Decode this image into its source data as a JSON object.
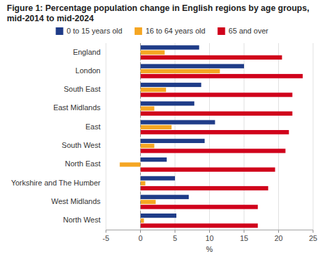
{
  "chart_data": {
    "type": "bar",
    "orientation": "horizontal",
    "title": "Figure 1: Percentage population change in English regions by age groups, mid-2014 to mid-2024",
    "categories": [
      "England",
      "London",
      "South East",
      "East Midlands",
      "East",
      "South West",
      "North East",
      "Yorkshire and The Humber",
      "West Midlands",
      "North West"
    ],
    "series": [
      {
        "name": "0 to 15 years old",
        "color": "#1f3c88",
        "values": [
          8.5,
          15.0,
          8.8,
          7.8,
          10.8,
          9.3,
          3.8,
          5.0,
          7.0,
          5.2
        ]
      },
      {
        "name": "16 to 64 years old",
        "color": "#f5a623",
        "values": [
          3.5,
          11.5,
          3.7,
          2.0,
          4.5,
          2.0,
          -3.0,
          0.7,
          2.2,
          0.5
        ]
      },
      {
        "name": "65 and over",
        "color": "#d0021b",
        "values": [
          20.5,
          23.5,
          22.0,
          22.0,
          21.5,
          21.0,
          19.5,
          18.5,
          17.0,
          17.0
        ]
      }
    ],
    "xlabel": "%",
    "xlim": [
      -5,
      25
    ],
    "xticks": [
      -5,
      0,
      5,
      10,
      15,
      20,
      25
    ],
    "grid": true,
    "legend": "top"
  }
}
